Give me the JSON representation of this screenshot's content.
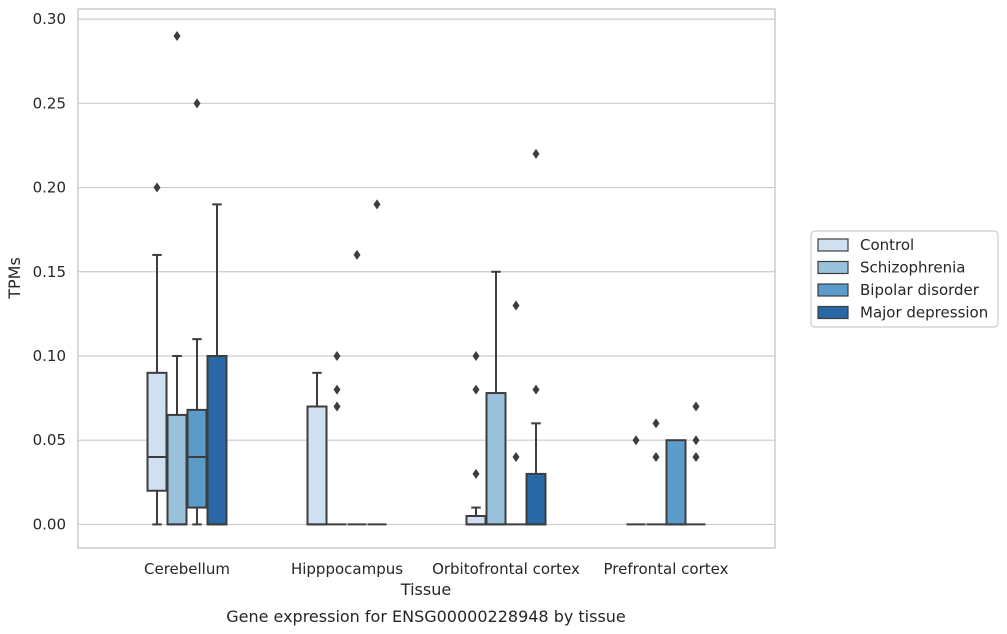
{
  "chart_data": {
    "type": "boxplot",
    "title": "",
    "caption": "Gene expression for ENSG00000228948 by tissue",
    "xlabel": "Tissue",
    "ylabel": "TPMs",
    "ylim": [
      -0.014,
      0.306
    ],
    "yticks": [
      0.0,
      0.05,
      0.1,
      0.15,
      0.2,
      0.25,
      0.3
    ],
    "ytick_labels": [
      "0.00",
      "0.05",
      "0.10",
      "0.15",
      "0.20",
      "0.25",
      "0.30"
    ],
    "grid": "horizontal",
    "legend_placement": "right",
    "categories": [
      "Cerebellum",
      "Hipppocampus",
      "Orbitofrontal cortex",
      "Prefrontal cortex"
    ],
    "series": [
      {
        "name": "Control",
        "color": "#d0e0f0",
        "boxes": [
          {
            "q1": 0.02,
            "median": 0.04,
            "q3": 0.09,
            "whislo": 0.0,
            "whishi": 0.16,
            "fliers": [
              0.2
            ]
          },
          {
            "q1": 0.0,
            "median": 0.0,
            "q3": 0.07,
            "whislo": 0.0,
            "whishi": 0.09,
            "fliers": []
          },
          {
            "q1": 0.0,
            "median": 0.0,
            "q3": 0.005,
            "whislo": 0.0,
            "whishi": 0.01,
            "fliers": [
              0.03,
              0.08,
              0.1
            ]
          },
          {
            "q1": 0.0,
            "median": 0.0,
            "q3": 0.0,
            "whislo": 0.0,
            "whishi": 0.0,
            "fliers": [
              0.05
            ]
          }
        ]
      },
      {
        "name": "Schizophrenia",
        "color": "#9ac2dc",
        "boxes": [
          {
            "q1": 0.0,
            "median": 0.0,
            "q3": 0.065,
            "whislo": 0.0,
            "whishi": 0.1,
            "fliers": [
              0.29
            ]
          },
          {
            "q1": 0.0,
            "median": 0.0,
            "q3": 0.0,
            "whislo": 0.0,
            "whishi": 0.0,
            "fliers": [
              0.07,
              0.08,
              0.1
            ]
          },
          {
            "q1": 0.0,
            "median": 0.0,
            "q3": 0.078,
            "whislo": 0.0,
            "whishi": 0.15,
            "fliers": []
          },
          {
            "q1": 0.0,
            "median": 0.0,
            "q3": 0.0,
            "whislo": 0.0,
            "whishi": 0.0,
            "fliers": [
              0.04,
              0.06
            ]
          }
        ]
      },
      {
        "name": "Bipolar disorder",
        "color": "#5a9bc9",
        "boxes": [
          {
            "q1": 0.01,
            "median": 0.04,
            "q3": 0.068,
            "whislo": 0.0,
            "whishi": 0.11,
            "fliers": [
              0.25
            ]
          },
          {
            "q1": 0.0,
            "median": 0.0,
            "q3": 0.0,
            "whislo": 0.0,
            "whishi": 0.0,
            "fliers": [
              0.16
            ]
          },
          {
            "q1": 0.0,
            "median": 0.0,
            "q3": 0.0,
            "whislo": 0.0,
            "whishi": 0.0,
            "fliers": [
              0.04,
              0.13
            ]
          },
          {
            "q1": 0.0,
            "median": 0.0,
            "q3": 0.05,
            "whislo": 0.0,
            "whishi": 0.05,
            "fliers": []
          }
        ]
      },
      {
        "name": "Major depression",
        "color": "#2868a6",
        "boxes": [
          {
            "q1": 0.0,
            "median": 0.0,
            "q3": 0.1,
            "whislo": 0.0,
            "whishi": 0.19,
            "fliers": []
          },
          {
            "q1": 0.0,
            "median": 0.0,
            "q3": 0.0,
            "whislo": 0.0,
            "whishi": 0.0,
            "fliers": [
              0.19
            ]
          },
          {
            "q1": 0.0,
            "median": 0.0,
            "q3": 0.03,
            "whislo": 0.0,
            "whishi": 0.06,
            "fliers": [
              0.08,
              0.22
            ]
          },
          {
            "q1": 0.0,
            "median": 0.0,
            "q3": 0.0,
            "whislo": 0.0,
            "whishi": 0.0,
            "fliers": [
              0.04,
              0.05,
              0.07
            ]
          }
        ]
      }
    ]
  }
}
